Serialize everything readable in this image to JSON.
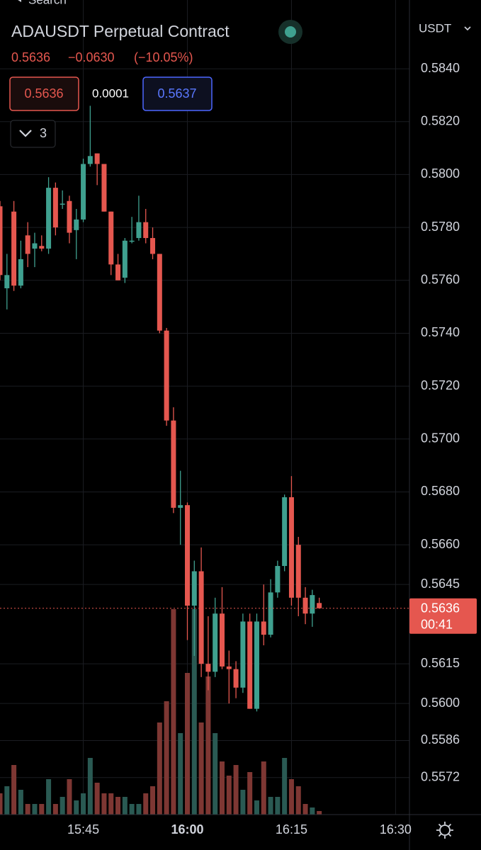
{
  "header": {
    "back": "Search",
    "title": "ADAUSDT Perpetual Contract",
    "price": "0.5636",
    "change": "−0.0630",
    "change_pct": "(−10.05%)",
    "bid": "0.5636",
    "spread": "0.0001",
    "ask": "0.5637",
    "indicators_count": "3",
    "currency": "USDT"
  },
  "chart_data": {
    "type": "candlestick",
    "x": [
      "15:33",
      "15:34",
      "15:35",
      "15:36",
      "15:37",
      "15:38",
      "15:39",
      "15:40",
      "15:41",
      "15:42",
      "15:43",
      "15:44",
      "15:45",
      "15:46",
      "15:47",
      "15:48",
      "15:49",
      "15:50",
      "15:51",
      "15:52",
      "15:53",
      "15:54",
      "15:55",
      "15:56",
      "15:57",
      "15:58",
      "15:59",
      "16:00",
      "16:01",
      "16:02",
      "16:03",
      "16:04",
      "16:05",
      "16:06",
      "16:07",
      "16:08",
      "16:09",
      "16:10",
      "16:11",
      "16:12",
      "16:13",
      "16:14",
      "16:15",
      "16:16",
      "16:17",
      "16:18",
      "16:19"
    ],
    "open": [
      0.5788,
      0.5757,
      0.5786,
      0.5758,
      0.5777,
      0.5772,
      0.5773,
      0.5772,
      0.5795,
      0.5789,
      0.579,
      0.5779,
      0.5783,
      0.5804,
      0.5808,
      0.5804,
      0.5786,
      0.5766,
      0.5761,
      0.5775,
      0.5776,
      0.5782,
      0.5776,
      0.577,
      0.5741,
      0.5707,
      0.5674,
      0.5675,
      0.5637,
      0.565,
      0.5615,
      0.5612,
      0.5634,
      0.5614,
      0.5613,
      0.5606,
      0.5631,
      0.5598,
      0.5631,
      0.5626,
      0.5642,
      0.5652,
      0.5678,
      0.566,
      0.564,
      0.5634,
      0.5638
    ],
    "high": [
      0.579,
      0.577,
      0.579,
      0.5775,
      0.5782,
      0.5778,
      0.5777,
      0.5799,
      0.5797,
      0.5794,
      0.5792,
      0.5787,
      0.5806,
      0.5826,
      0.5808,
      0.5804,
      0.5786,
      0.577,
      0.5776,
      0.5784,
      0.5792,
      0.5787,
      0.578,
      0.577,
      0.5742,
      0.5712,
      0.5688,
      0.5676,
      0.5654,
      0.5659,
      0.5633,
      0.564,
      0.5644,
      0.562,
      0.5616,
      0.5634,
      0.5634,
      0.5634,
      0.5645,
      0.5647,
      0.5654,
      0.5679,
      0.5686,
      0.5663,
      0.5644,
      0.5643,
      0.564
    ],
    "low": [
      0.576,
      0.5749,
      0.5756,
      0.5757,
      0.5765,
      0.5765,
      0.5771,
      0.577,
      0.5777,
      0.5787,
      0.5774,
      0.5768,
      0.5782,
      0.5803,
      0.5796,
      0.5786,
      0.5762,
      0.576,
      0.5759,
      0.5774,
      0.5775,
      0.5774,
      0.5768,
      0.574,
      0.5705,
      0.5672,
      0.566,
      0.5624,
      0.5618,
      0.561,
      0.5605,
      0.561,
      0.5613,
      0.56,
      0.5602,
      0.5604,
      0.5598,
      0.5597,
      0.5622,
      0.5625,
      0.564,
      0.565,
      0.5637,
      0.5633,
      0.563,
      0.5629,
      0.5636
    ],
    "close": [
      0.5762,
      0.5762,
      0.5758,
      0.5768,
      0.577,
      0.5774,
      0.5772,
      0.5795,
      0.578,
      0.5789,
      0.5778,
      0.5783,
      0.5804,
      0.5807,
      0.5804,
      0.5786,
      0.5766,
      0.576,
      0.5775,
      0.5775,
      0.5782,
      0.5776,
      0.577,
      0.5741,
      0.5707,
      0.5674,
      0.5675,
      0.5637,
      0.565,
      0.5615,
      0.5612,
      0.5634,
      0.5614,
      0.5613,
      0.5606,
      0.5631,
      0.5598,
      0.5631,
      0.5626,
      0.5642,
      0.5652,
      0.5678,
      0.564,
      0.564,
      0.5634,
      0.5641,
      0.5636
    ],
    "volume": [
      30,
      40,
      70,
      35,
      15,
      15,
      15,
      50,
      15,
      25,
      50,
      20,
      30,
      80,
      45,
      30,
      30,
      25,
      25,
      15,
      15,
      30,
      40,
      130,
      160,
      290,
      115,
      200,
      290,
      130,
      195,
      115,
      75,
      55,
      70,
      35,
      60,
      20,
      75,
      25,
      25,
      80,
      50,
      40,
      15,
      10,
      5
    ],
    "up_color": "#3fa08f",
    "down_color": "#e5574f",
    "up_volume_color": "#2a5a53",
    "down_volume_color": "#7e3733",
    "xlim": [
      "15:33",
      "16:32"
    ],
    "xticks": [
      "15:45",
      "16:00",
      "16:15",
      "16:30"
    ],
    "ylim": [
      0.5558,
      0.5866
    ],
    "yticks": [
      {
        "value": 0.584,
        "label": "0.5840"
      },
      {
        "value": 0.582,
        "label": "0.5820"
      },
      {
        "value": 0.58,
        "label": "0.5800"
      },
      {
        "value": 0.578,
        "label": "0.5780"
      },
      {
        "value": 0.576,
        "label": "0.5760"
      },
      {
        "value": 0.574,
        "label": "0.5740"
      },
      {
        "value": 0.572,
        "label": "0.5720"
      },
      {
        "value": 0.57,
        "label": "0.5700"
      },
      {
        "value": 0.568,
        "label": "0.5680"
      },
      {
        "value": 0.566,
        "label": "0.5660"
      },
      0.5645,
      0.5615,
      {
        "value": 0.56,
        "label": "0.5600"
      },
      0.5586,
      0.5572
    ],
    "grid": true,
    "last_price": 0.5636,
    "countdown": "00:41"
  }
}
